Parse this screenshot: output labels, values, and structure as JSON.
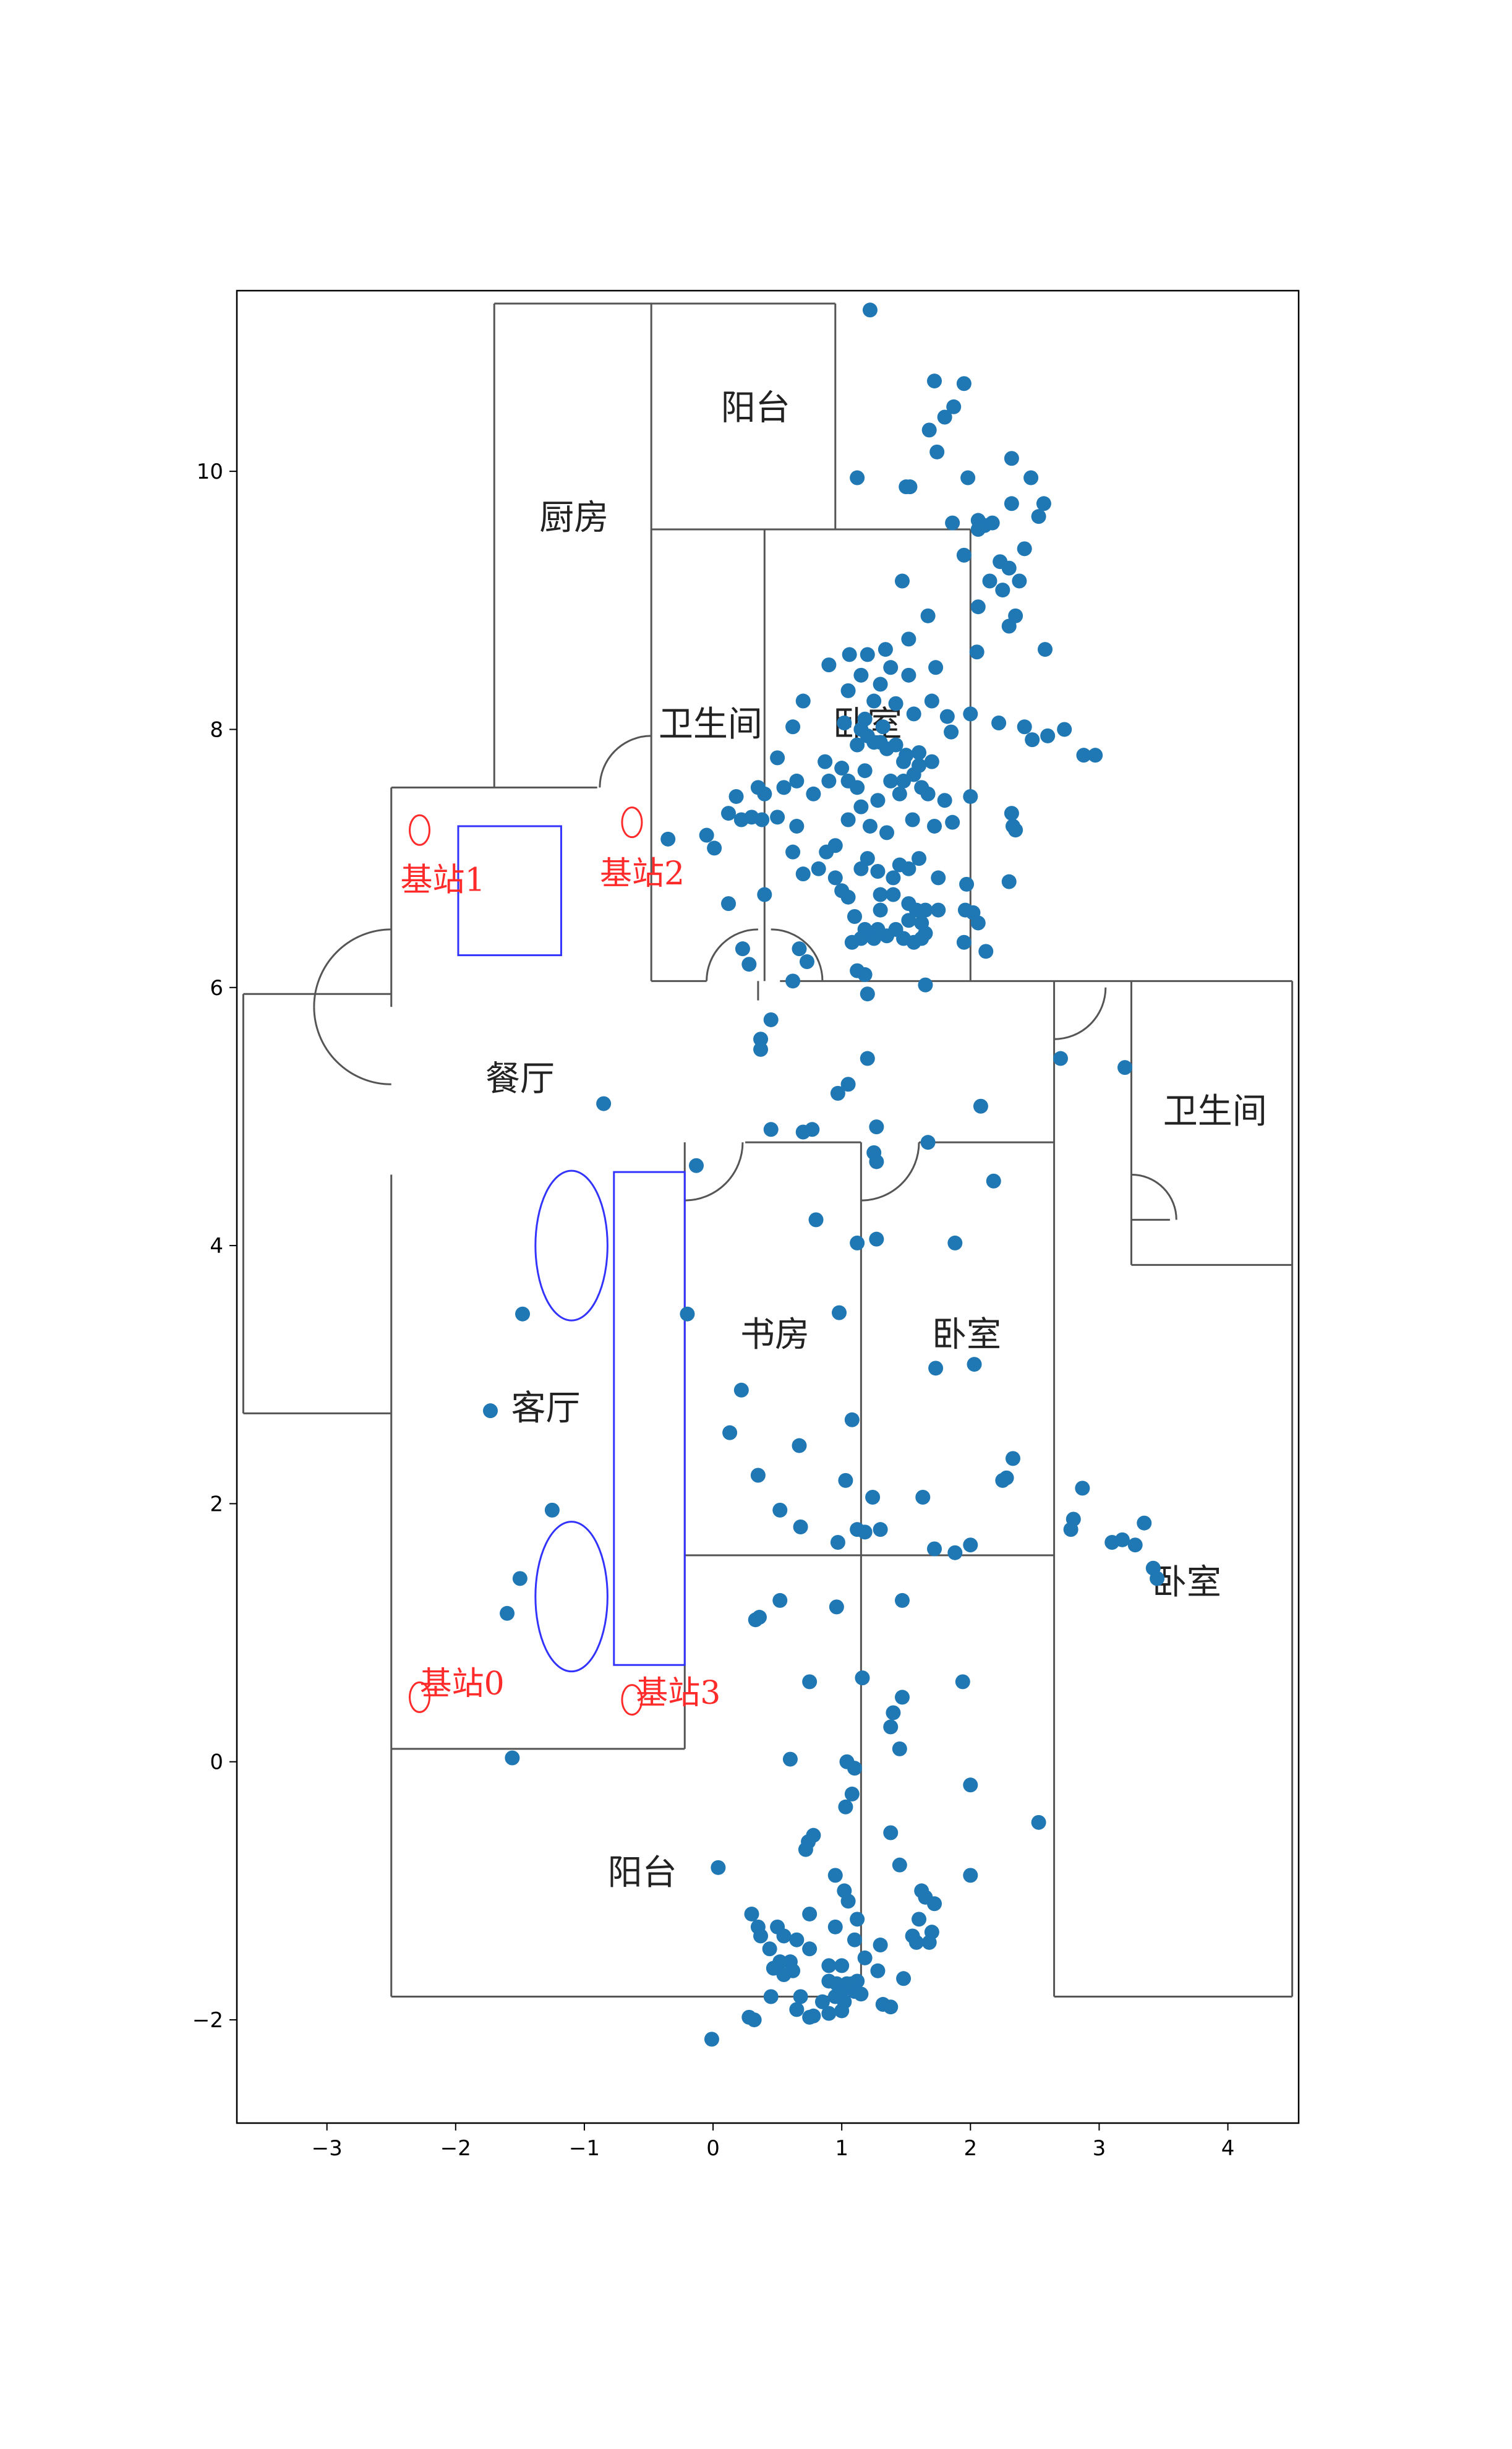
{
  "chart_data": {
    "type": "scatter",
    "xlim": [
      -3.7,
      4.55
    ],
    "ylim": [
      -2.8,
      11.4
    ],
    "xticks": [
      {
        "v": -3,
        "label": "−3"
      },
      {
        "v": -2,
        "label": "−2"
      },
      {
        "v": -1,
        "label": "−1"
      },
      {
        "v": 0,
        "label": "0"
      },
      {
        "v": 1,
        "label": "1"
      },
      {
        "v": 2,
        "label": "2"
      },
      {
        "v": 3,
        "label": "3"
      },
      {
        "v": 4,
        "label": "4"
      }
    ],
    "yticks": [
      {
        "v": -2,
        "label": "−2"
      },
      {
        "v": 0,
        "label": "0"
      },
      {
        "v": 2,
        "label": "2"
      },
      {
        "v": 4,
        "label": "4"
      },
      {
        "v": 6,
        "label": "6"
      },
      {
        "v": 8,
        "label": "8"
      },
      {
        "v": 10,
        "label": "10"
      }
    ],
    "grid": false,
    "marker_color": "#1f77b4",
    "floorplan_color": "#555555",
    "furniture_color": "#3333ff",
    "station_color": "#ff2a2a",
    "rooms": [
      {
        "label": "阳台",
        "x": 0.33,
        "y": 10.4
      },
      {
        "label": "厨房",
        "x": -1.08,
        "y": 9.55
      },
      {
        "label": "卫生间",
        "x": -0.02,
        "y": 7.95
      },
      {
        "label": "卧室",
        "x": 1.2,
        "y": 7.95
      },
      {
        "label": "餐厅",
        "x": -1.5,
        "y": 5.2
      },
      {
        "label": "卫生间",
        "x": 3.9,
        "y": 4.95
      },
      {
        "label": "书房",
        "x": 0.48,
        "y": 3.22
      },
      {
        "label": "卧室",
        "x": 1.97,
        "y": 3.22
      },
      {
        "label": "客厅",
        "x": -1.3,
        "y": 2.65
      },
      {
        "label": "卧室",
        "x": 3.68,
        "y": 1.3
      },
      {
        "label": "阳台",
        "x": -0.55,
        "y": -0.95
      }
    ],
    "stations": [
      {
        "label": "基站1",
        "x": -2.28,
        "y": 7.22,
        "lx": -2.1,
        "ly": 6.75
      },
      {
        "label": "基站2",
        "x": -0.63,
        "y": 7.28,
        "lx": -0.55,
        "ly": 6.8
      },
      {
        "label": "基站0",
        "x": -2.28,
        "y": 0.5,
        "lx": -1.95,
        "ly": 0.52
      },
      {
        "label": "基站3",
        "x": -0.63,
        "y": 0.48,
        "lx": -0.27,
        "ly": 0.45
      }
    ],
    "points": [
      [
        1.22,
        11.25
      ],
      [
        1.72,
        10.7
      ],
      [
        1.95,
        10.68
      ],
      [
        1.87,
        10.5
      ],
      [
        1.8,
        10.42
      ],
      [
        1.68,
        10.32
      ],
      [
        1.74,
        10.15
      ],
      [
        2.32,
        10.1
      ],
      [
        1.12,
        9.95
      ],
      [
        1.98,
        9.95
      ],
      [
        2.47,
        9.95
      ],
      [
        1.53,
        9.88
      ],
      [
        1.5,
        9.88
      ],
      [
        2.57,
        9.75
      ],
      [
        2.32,
        9.75
      ],
      [
        2.53,
        9.65
      ],
      [
        2.06,
        9.62
      ],
      [
        2.11,
        9.58
      ],
      [
        1.86,
        9.6
      ],
      [
        2.17,
        9.6
      ],
      [
        2.06,
        9.55
      ],
      [
        2.42,
        9.4
      ],
      [
        2.23,
        9.3
      ],
      [
        1.95,
        9.35
      ],
      [
        2.3,
        9.25
      ],
      [
        2.38,
        9.15
      ],
      [
        2.15,
        9.15
      ],
      [
        2.25,
        9.08
      ],
      [
        1.47,
        9.15
      ],
      [
        2.06,
        8.95
      ],
      [
        2.35,
        8.88
      ],
      [
        1.67,
        8.88
      ],
      [
        2.3,
        8.8
      ],
      [
        2.58,
        8.62
      ],
      [
        1.34,
        8.62
      ],
      [
        1.52,
        8.7
      ],
      [
        1.06,
        8.58
      ],
      [
        1.2,
        8.58
      ],
      [
        1.38,
        8.48
      ],
      [
        1.52,
        8.42
      ],
      [
        2.05,
        8.6
      ],
      [
        1.73,
        8.48
      ],
      [
        1.15,
        8.42
      ],
      [
        0.9,
        8.5
      ],
      [
        1.3,
        8.35
      ],
      [
        1.42,
        8.2
      ],
      [
        1.05,
        8.3
      ],
      [
        1.25,
        8.22
      ],
      [
        1.7,
        8.22
      ],
      [
        2.22,
        8.05
      ],
      [
        1.82,
        8.1
      ],
      [
        2.0,
        8.12
      ],
      [
        0.7,
        8.22
      ],
      [
        1.18,
        8.08
      ],
      [
        1.32,
        8.02
      ],
      [
        1.56,
        8.12
      ],
      [
        0.62,
        8.02
      ],
      [
        1.02,
        8.05
      ],
      [
        1.15,
        8.0
      ],
      [
        1.2,
        7.95
      ],
      [
        1.25,
        7.9
      ],
      [
        1.3,
        7.9
      ],
      [
        1.12,
        7.88
      ],
      [
        1.35,
        7.85
      ],
      [
        1.42,
        7.88
      ],
      [
        1.5,
        7.8
      ],
      [
        1.6,
        7.82
      ],
      [
        1.7,
        7.75
      ],
      [
        1.85,
        7.98
      ],
      [
        2.42,
        8.02
      ],
      [
        2.73,
        8.0
      ],
      [
        2.48,
        7.92
      ],
      [
        2.6,
        7.95
      ],
      [
        2.88,
        7.8
      ],
      [
        2.97,
        7.8
      ],
      [
        0.5,
        7.78
      ],
      [
        0.87,
        7.75
      ],
      [
        1.0,
        7.7
      ],
      [
        1.05,
        7.6
      ],
      [
        1.18,
        7.68
      ],
      [
        1.12,
        7.55
      ],
      [
        1.38,
        7.6
      ],
      [
        1.48,
        7.6
      ],
      [
        1.56,
        7.65
      ],
      [
        1.62,
        7.55
      ],
      [
        1.67,
        7.5
      ],
      [
        1.48,
        7.75
      ],
      [
        1.6,
        7.72
      ],
      [
        0.35,
        7.55
      ],
      [
        0.4,
        7.5
      ],
      [
        0.55,
        7.55
      ],
      [
        0.65,
        7.6
      ],
      [
        0.78,
        7.5
      ],
      [
        0.9,
        7.6
      ],
      [
        0.18,
        7.48
      ],
      [
        1.15,
        7.4
      ],
      [
        1.28,
        7.45
      ],
      [
        1.45,
        7.5
      ],
      [
        1.8,
        7.45
      ],
      [
        2.0,
        7.48
      ],
      [
        2.32,
        7.35
      ],
      [
        2.33,
        7.25
      ],
      [
        2.35,
        7.22
      ],
      [
        0.12,
        7.35
      ],
      [
        0.22,
        7.3
      ],
      [
        0.3,
        7.32
      ],
      [
        0.38,
        7.3
      ],
      [
        0.5,
        7.32
      ],
      [
        0.65,
        7.25
      ],
      [
        1.05,
        7.3
      ],
      [
        1.22,
        7.25
      ],
      [
        1.35,
        7.2
      ],
      [
        1.55,
        7.3
      ],
      [
        1.72,
        7.25
      ],
      [
        1.86,
        7.28
      ],
      [
        -0.35,
        7.15
      ],
      [
        -0.05,
        7.18
      ],
      [
        0.01,
        7.08
      ],
      [
        0.62,
        7.05
      ],
      [
        0.95,
        7.1
      ],
      [
        0.88,
        7.05
      ],
      [
        1.2,
        7.0
      ],
      [
        1.15,
        6.92
      ],
      [
        1.28,
        6.9
      ],
      [
        1.45,
        6.95
      ],
      [
        1.4,
        6.85
      ],
      [
        1.6,
        7.0
      ],
      [
        1.52,
        6.92
      ],
      [
        1.75,
        6.85
      ],
      [
        1.97,
        6.8
      ],
      [
        2.3,
        6.82
      ],
      [
        0.7,
        6.88
      ],
      [
        0.82,
        6.92
      ],
      [
        0.95,
        6.85
      ],
      [
        1.0,
        6.75
      ],
      [
        1.05,
        6.7
      ],
      [
        1.3,
        6.72
      ],
      [
        1.4,
        6.72
      ],
      [
        1.52,
        6.65
      ],
      [
        1.58,
        6.6
      ],
      [
        1.65,
        6.6
      ],
      [
        1.75,
        6.6
      ],
      [
        0.12,
        6.65
      ],
      [
        0.4,
        6.72
      ],
      [
        1.3,
        6.6
      ],
      [
        1.1,
        6.55
      ],
      [
        1.52,
        6.52
      ],
      [
        1.62,
        6.5
      ],
      [
        1.18,
        6.45
      ],
      [
        1.28,
        6.45
      ],
      [
        1.35,
        6.4
      ],
      [
        1.42,
        6.45
      ],
      [
        1.15,
        6.38
      ],
      [
        1.25,
        6.38
      ],
      [
        1.48,
        6.38
      ],
      [
        1.56,
        6.35
      ],
      [
        1.65,
        6.42
      ],
      [
        1.96,
        6.6
      ],
      [
        2.02,
        6.58
      ],
      [
        2.06,
        6.5
      ],
      [
        0.23,
        6.3
      ],
      [
        0.67,
        6.3
      ],
      [
        1.08,
        6.35
      ],
      [
        1.95,
        6.35
      ],
      [
        2.12,
        6.28
      ],
      [
        0.28,
        6.18
      ],
      [
        0.73,
        6.2
      ],
      [
        1.12,
        6.13
      ],
      [
        1.18,
        6.1
      ],
      [
        1.62,
        6.38
      ],
      [
        0.62,
        6.05
      ],
      [
        1.65,
        6.02
      ],
      [
        1.2,
        5.95
      ],
      [
        0.45,
        5.75
      ],
      [
        0.37,
        5.6
      ],
      [
        0.37,
        5.52
      ],
      [
        1.2,
        5.45
      ],
      [
        2.7,
        5.45
      ],
      [
        3.2,
        5.38
      ],
      [
        1.05,
        5.25
      ],
      [
        0.97,
        5.18
      ],
      [
        -0.85,
        5.1
      ],
      [
        2.08,
        5.08
      ],
      [
        0.77,
        4.9
      ],
      [
        0.45,
        4.9
      ],
      [
        0.7,
        4.88
      ],
      [
        1.27,
        4.92
      ],
      [
        1.25,
        4.72
      ],
      [
        1.67,
        4.8
      ],
      [
        -0.13,
        4.62
      ],
      [
        1.27,
        4.65
      ],
      [
        2.18,
        4.5
      ],
      [
        0.8,
        4.2
      ],
      [
        1.12,
        4.02
      ],
      [
        1.27,
        4.05
      ],
      [
        1.88,
        4.02
      ],
      [
        -1.48,
        3.47
      ],
      [
        -0.2,
        3.47
      ],
      [
        0.98,
        3.48
      ],
      [
        1.73,
        3.05
      ],
      [
        2.03,
        3.08
      ],
      [
        -1.73,
        2.72
      ],
      [
        0.22,
        2.88
      ],
      [
        1.08,
        2.65
      ],
      [
        0.13,
        2.55
      ],
      [
        0.67,
        2.45
      ],
      [
        2.33,
        2.35
      ],
      [
        0.35,
        2.22
      ],
      [
        2.28,
        2.2
      ],
      [
        2.25,
        2.18
      ],
      [
        1.03,
        2.18
      ],
      [
        2.87,
        2.12
      ],
      [
        1.24,
        2.05
      ],
      [
        1.63,
        2.05
      ],
      [
        -1.25,
        1.95
      ],
      [
        0.52,
        1.95
      ],
      [
        2.8,
        1.88
      ],
      [
        2.78,
        1.8
      ],
      [
        0.68,
        1.82
      ],
      [
        1.12,
        1.8
      ],
      [
        1.3,
        1.8
      ],
      [
        1.18,
        1.78
      ],
      [
        3.1,
        1.7
      ],
      [
        3.35,
        1.85
      ],
      [
        3.18,
        1.72
      ],
      [
        3.28,
        1.68
      ],
      [
        0.97,
        1.7
      ],
      [
        1.72,
        1.65
      ],
      [
        2.0,
        1.68
      ],
      [
        1.88,
        1.62
      ],
      [
        3.42,
        1.5
      ],
      [
        3.45,
        1.42
      ],
      [
        -1.5,
        1.42
      ],
      [
        0.52,
        1.25
      ],
      [
        1.47,
        1.25
      ],
      [
        0.96,
        1.2
      ],
      [
        0.36,
        1.12
      ],
      [
        -1.6,
        1.15
      ],
      [
        0.33,
        1.1
      ],
      [
        1.16,
        0.65
      ],
      [
        0.75,
        0.62
      ],
      [
        1.94,
        0.62
      ],
      [
        1.47,
        0.5
      ],
      [
        1.4,
        0.38
      ],
      [
        1.38,
        0.27
      ],
      [
        1.45,
        0.1
      ],
      [
        -1.56,
        0.03
      ],
      [
        0.6,
        0.02
      ],
      [
        1.04,
        0.0
      ],
      [
        1.1,
        -0.05
      ],
      [
        2.0,
        -0.18
      ],
      [
        1.08,
        -0.25
      ],
      [
        1.03,
        -0.35
      ],
      [
        2.53,
        -0.47
      ],
      [
        1.38,
        -0.55
      ],
      [
        0.78,
        -0.57
      ],
      [
        0.74,
        -0.62
      ],
      [
        0.72,
        -0.68
      ],
      [
        1.45,
        -0.8
      ],
      [
        0.04,
        -0.82
      ],
      [
        0.95,
        -0.88
      ],
      [
        2.0,
        -0.88
      ],
      [
        1.02,
        -1.0
      ],
      [
        1.62,
        -1.0
      ],
      [
        1.65,
        -1.05
      ],
      [
        1.72,
        -1.1
      ],
      [
        1.05,
        -1.08
      ],
      [
        0.3,
        -1.18
      ],
      [
        0.75,
        -1.18
      ],
      [
        1.12,
        -1.22
      ],
      [
        1.6,
        -1.22
      ],
      [
        0.35,
        -1.28
      ],
      [
        0.5,
        -1.28
      ],
      [
        0.95,
        -1.28
      ],
      [
        1.7,
        -1.32
      ],
      [
        0.55,
        -1.35
      ],
      [
        0.37,
        -1.35
      ],
      [
        1.55,
        -1.35
      ],
      [
        0.65,
        -1.38
      ],
      [
        1.1,
        -1.38
      ],
      [
        1.58,
        -1.4
      ],
      [
        0.44,
        -1.45
      ],
      [
        1.3,
        -1.42
      ],
      [
        1.68,
        -1.4
      ],
      [
        0.75,
        -1.45
      ],
      [
        1.18,
        -1.52
      ],
      [
        0.6,
        -1.55
      ],
      [
        0.52,
        -1.55
      ],
      [
        0.9,
        -1.58
      ],
      [
        0.47,
        -1.6
      ],
      [
        0.62,
        -1.62
      ],
      [
        0.55,
        -1.65
      ],
      [
        1.0,
        -1.58
      ],
      [
        1.28,
        -1.62
      ],
      [
        1.48,
        -1.68
      ],
      [
        1.12,
        -1.7
      ],
      [
        0.9,
        -1.7
      ],
      [
        0.96,
        -1.72
      ],
      [
        1.04,
        -1.72
      ],
      [
        1.08,
        -1.72
      ],
      [
        1.0,
        -1.78
      ],
      [
        1.1,
        -1.78
      ],
      [
        1.15,
        -1.8
      ],
      [
        0.68,
        -1.82
      ],
      [
        0.45,
        -1.82
      ],
      [
        0.95,
        -1.82
      ],
      [
        0.85,
        -1.86
      ],
      [
        1.02,
        -1.86
      ],
      [
        1.32,
        -1.88
      ],
      [
        1.38,
        -1.9
      ],
      [
        0.65,
        -1.92
      ],
      [
        1.0,
        -1.93
      ],
      [
        0.9,
        -1.95
      ],
      [
        0.78,
        -1.97
      ],
      [
        0.75,
        -1.98
      ],
      [
        0.28,
        -1.98
      ],
      [
        0.32,
        -2.0
      ],
      [
        -0.01,
        -2.15
      ]
    ]
  }
}
